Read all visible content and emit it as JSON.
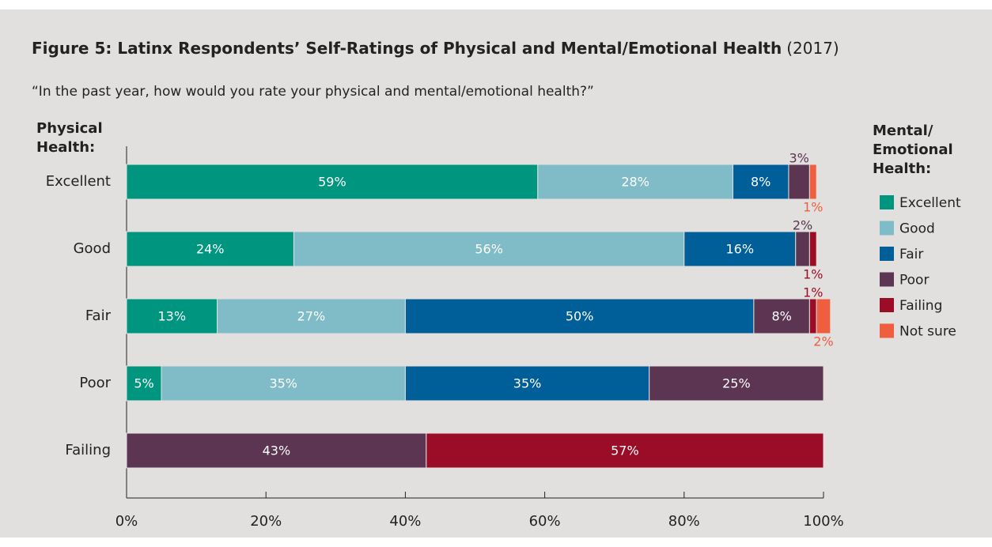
{
  "chart_data": {
    "type": "stacked_bar_horizontal",
    "title": "Figure 5: Latinx Respondents’ Self-Ratings of Physical and Mental/Emotional Health",
    "title_note": "(2017)",
    "subtitle": "“In the past year, how would you rate your physical and mental/emotional health?”",
    "y_label_lines": [
      "Physical",
      "Health:"
    ],
    "legend_title_lines": [
      "Mental/",
      "Emotional",
      "Health:"
    ],
    "categories": [
      "Excellent",
      "Good",
      "Fair",
      "Poor",
      "Failing"
    ],
    "series": [
      {
        "name": "Excellent",
        "color": "#00957f",
        "values": [
          59,
          24,
          13,
          5,
          null
        ],
        "value_labels": [
          "59%",
          "24%",
          "13%",
          "5%",
          null
        ]
      },
      {
        "name": "Good",
        "color": "#80bcc8",
        "values": [
          28,
          56,
          27,
          35,
          null
        ],
        "value_labels": [
          "28%",
          "56%",
          "27%",
          "35%",
          null
        ]
      },
      {
        "name": "Fair",
        "color": "#005f99",
        "values": [
          8,
          16,
          50,
          35,
          null
        ],
        "value_labels": [
          "8%",
          "16%",
          "50%",
          "35%",
          null
        ]
      },
      {
        "name": "Poor",
        "color": "#5b3552",
        "values": [
          3,
          2,
          8,
          25,
          43
        ],
        "value_labels": [
          "3%",
          "2%",
          "8%",
          "25%",
          "43%"
        ]
      },
      {
        "name": "Failing",
        "color": "#9b0d26",
        "values": [
          null,
          1,
          1,
          null,
          57
        ],
        "value_labels": [
          null,
          "1%",
          "1%",
          null,
          "57%"
        ]
      },
      {
        "name": "Not sure",
        "color": "#ef5e3f",
        "values": [
          1,
          null,
          2,
          null,
          null
        ],
        "value_labels": [
          "1%",
          null,
          "2%",
          null,
          null
        ]
      }
    ],
    "xlim": [
      0,
      100
    ],
    "xticks": [
      {
        "value": 0,
        "label": "0%"
      },
      {
        "value": 20,
        "label": "20%"
      },
      {
        "value": 40,
        "label": "40%"
      },
      {
        "value": 60,
        "label": "60%"
      },
      {
        "value": 80,
        "label": "80%"
      },
      {
        "value": 100,
        "label": "100%"
      }
    ],
    "legend_position": "right"
  }
}
